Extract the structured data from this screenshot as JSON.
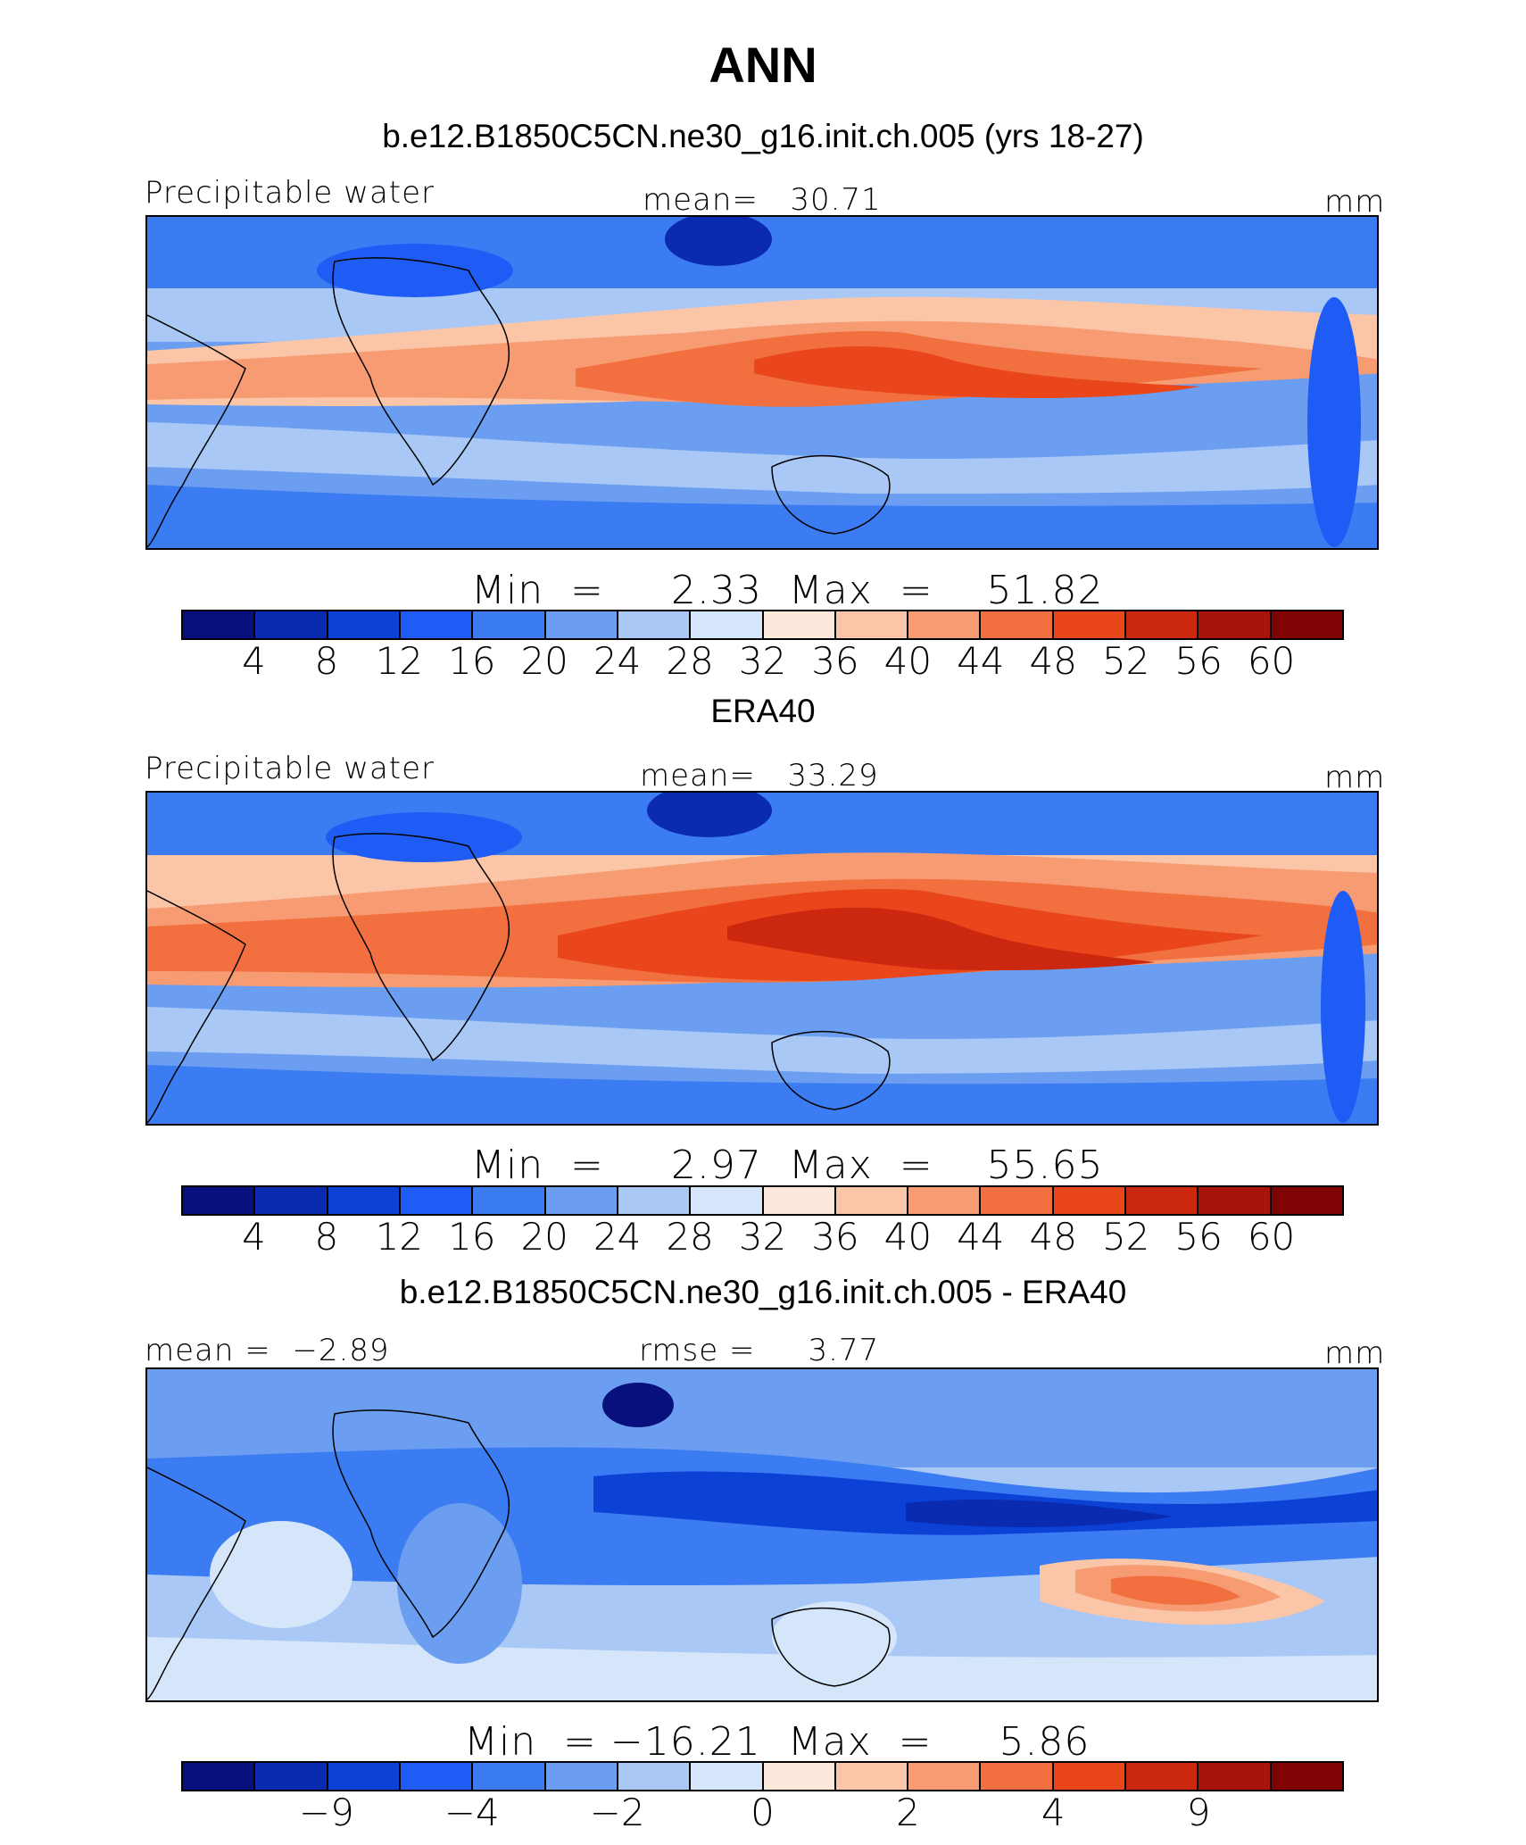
{
  "figure": {
    "title": "ANN"
  },
  "panels": [
    {
      "heading": "b.e12.B1850C5CN.ne30_g16.init.ch.005 (yrs 18-27)",
      "left_label": "Precipitable water",
      "center_label": "mean=   30.71",
      "right_label": "mm",
      "minmax": "Min  =     2.33  Max  =    51.82",
      "ticks": [
        "4",
        "8",
        "12",
        "16",
        "20",
        "24",
        "28",
        "32",
        "36",
        "40",
        "44",
        "48",
        "52",
        "56",
        "60"
      ],
      "colors": [
        "#08107e",
        "#0a2bb0",
        "#0c41d6",
        "#1f5cf5",
        "#3b7cf2",
        "#6b9ef0",
        "#a9c8f5",
        "#d6e6fa",
        "#fde8dc",
        "#fbc5a8",
        "#f79b73",
        "#f2703f",
        "#e9461c",
        "#cc2810",
        "#a8130a",
        "#800303"
      ]
    },
    {
      "heading": "ERA40",
      "left_label": "Precipitable water",
      "center_label": "mean=   33.29",
      "right_label": "mm",
      "minmax": "Min  =     2.97  Max  =    55.65",
      "ticks": [
        "4",
        "8",
        "12",
        "16",
        "20",
        "24",
        "28",
        "32",
        "36",
        "40",
        "44",
        "48",
        "52",
        "56",
        "60"
      ],
      "colors": [
        "#08107e",
        "#0a2bb0",
        "#0c41d6",
        "#1f5cf5",
        "#3b7cf2",
        "#6b9ef0",
        "#a9c8f5",
        "#d6e6fa",
        "#fde8dc",
        "#fbc5a8",
        "#f79b73",
        "#f2703f",
        "#e9461c",
        "#cc2810",
        "#a8130a",
        "#800303"
      ]
    },
    {
      "heading": "b.e12.B1850C5CN.ne30_g16.init.ch.005 - ERA40",
      "left_label": "mean =  −2.89",
      "center_label": "rmse =     3.77",
      "right_label": "mm",
      "minmax": "Min  = −16.21  Max  =     5.86",
      "ticks": [
        "−9",
        "−4",
        "−2",
        "0",
        "2",
        "4",
        "9"
      ],
      "colors": [
        "#08107e",
        "#0a2bb0",
        "#0c41d6",
        "#1f5cf5",
        "#3b7cf2",
        "#6b9ef0",
        "#a9c8f5",
        "#d6e6fa",
        "#fde8dc",
        "#fbc5a8",
        "#f79b73",
        "#f2703f",
        "#e9461c",
        "#cc2810",
        "#a8130a",
        "#800303"
      ]
    }
  ]
}
